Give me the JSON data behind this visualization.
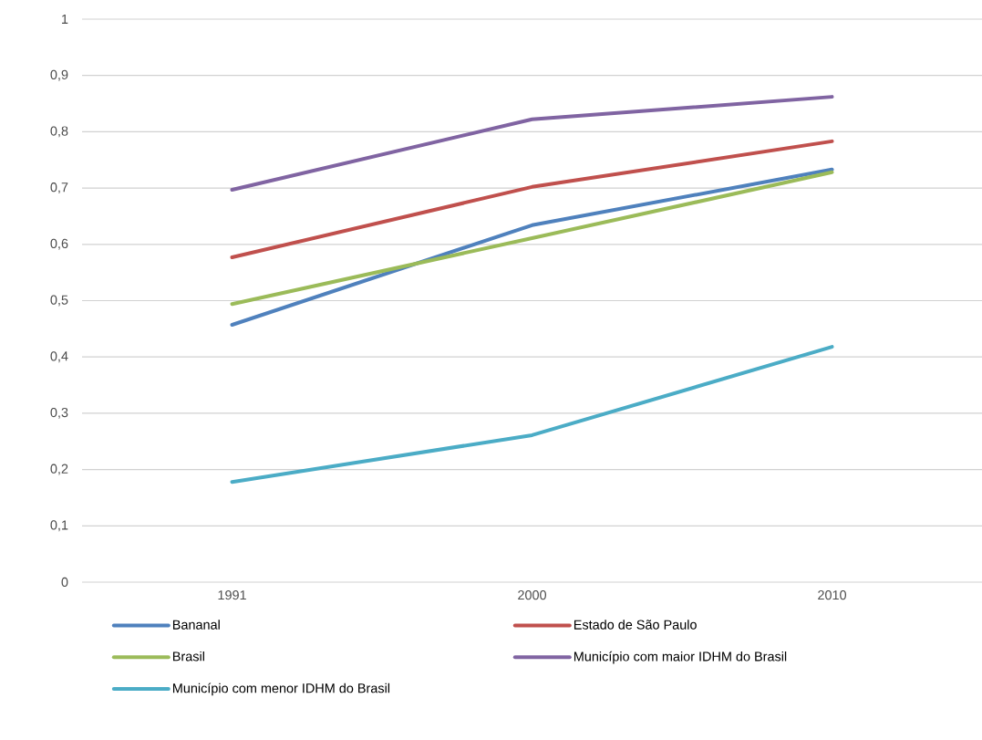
{
  "chart_data": {
    "type": "line",
    "categories": [
      "1991",
      "2000",
      "2010"
    ],
    "series": [
      {
        "name": "Bananal",
        "color": "#4f81bd",
        "values": [
          0.457,
          0.634,
          0.733
        ]
      },
      {
        "name": "Estado de São Paulo",
        "color": "#c0504d",
        "values": [
          0.577,
          0.702,
          0.783
        ]
      },
      {
        "name": "Brasil",
        "color": "#9bbb59",
        "values": [
          0.494,
          0.611,
          0.728
        ]
      },
      {
        "name": "Município com maior IDHM do Brasil",
        "color": "#8064a2",
        "values": [
          0.697,
          0.822,
          0.862
        ]
      },
      {
        "name": "Município com menor IDHM do Brasil",
        "color": "#4bacc6",
        "values": [
          0.178,
          0.261,
          0.418
        ]
      }
    ],
    "ylim": [
      0,
      1
    ],
    "yticks": [
      0,
      {
        "value": 0.1,
        "label": "0,1"
      },
      {
        "value": 0.2,
        "label": "0,2"
      },
      {
        "value": 0.3,
        "label": "0,3"
      },
      {
        "value": 0.4,
        "label": "0,4"
      },
      {
        "value": 0.5,
        "label": "0,5"
      },
      {
        "value": 0.6,
        "label": "0,6"
      },
      {
        "value": 0.7,
        "label": "0,7"
      },
      {
        "value": 0.8,
        "label": "0,8"
      },
      {
        "value": 0.9,
        "label": "0,9"
      },
      1
    ],
    "grid": "y",
    "legend": "bottom",
    "marker": "none",
    "line_style": "solid"
  }
}
